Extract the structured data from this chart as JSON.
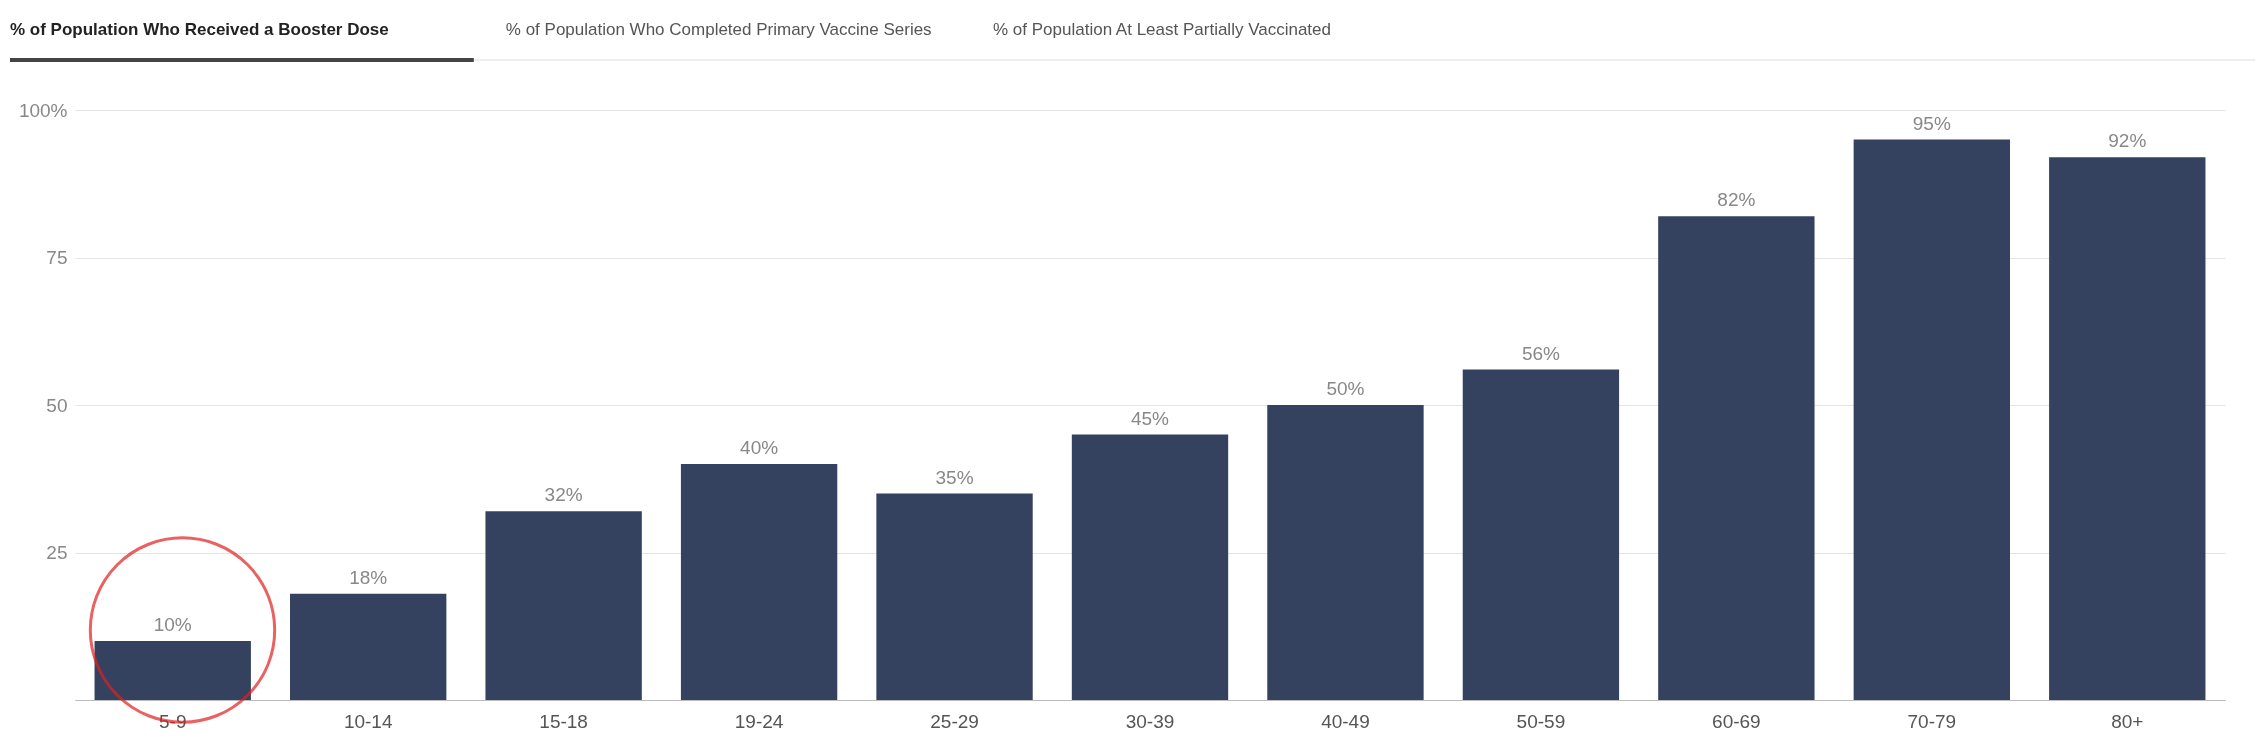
{
  "chart_data": {
    "type": "bar",
    "annotations": [
      "% of Population Who Received a Booster Dose",
      "% of Population Who Completed Primary Vaccine Series",
      "% of Population At Least Partially Vaccinated"
    ],
    "categories": [
      "5-9",
      "10-14",
      "15-18",
      "19-24",
      "25-29",
      "30-39",
      "40-49",
      "50-59",
      "60-69",
      "70-79",
      "80+"
    ],
    "values": [
      10,
      18,
      32,
      40,
      35,
      45,
      50,
      56,
      82,
      95,
      92
    ],
    "value_labels": [
      "10%",
      "18%",
      "32%",
      "40%",
      "35%",
      "45%",
      "50%",
      "56%",
      "82%",
      "95%",
      "92%"
    ],
    "color": "#344260",
    "ylim": [
      0,
      100
    ],
    "yticks": [
      {
        "value": 0,
        "label": null
      },
      25,
      50,
      75,
      {
        "value": 100,
        "label": "100%"
      }
    ],
    "grid": "y"
  }
}
